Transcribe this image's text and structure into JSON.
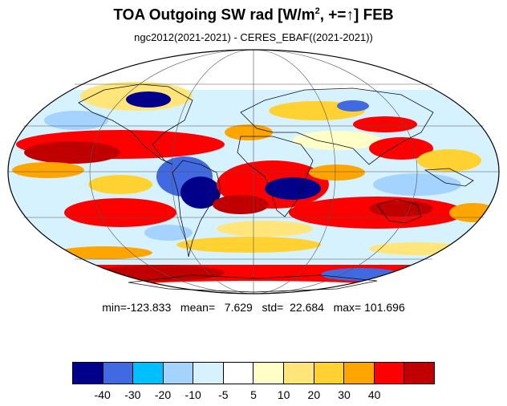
{
  "title": {
    "text": "TOA Outgoing SW rad [W/m",
    "superscript": "2",
    "suffix": ", +=↑] FEB"
  },
  "subtitle": "ngc2012(2021-2021) - CERES_EBAF((2021-2021))",
  "stats": "min=-123.833   mean=   7.629   std=  22.684   max= 101.696",
  "colorbar": {
    "colors": [
      "#00008b",
      "#4169e1",
      "#00bfff",
      "#a4d3ff",
      "#d7f2ff",
      "#ffffff",
      "#ffffc8",
      "#ffe57a",
      "#ffd232",
      "#ffa500",
      "#ff0000",
      "#c00000"
    ],
    "labels": [
      "-40",
      "-30",
      "-20",
      "-10",
      "-5",
      "5",
      "10",
      "20",
      "30",
      "40"
    ]
  }
}
